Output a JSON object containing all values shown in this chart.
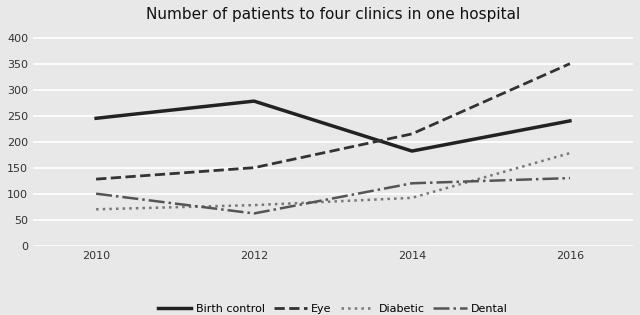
{
  "title": "Number of patients to four clinics in one hospital",
  "years": [
    2010,
    2012,
    2014,
    2016
  ],
  "series": {
    "Birth control": [
      245,
      278,
      182,
      240
    ],
    "Eye": [
      128,
      150,
      215,
      350
    ],
    "Diabetic": [
      70,
      78,
      92,
      178
    ],
    "Dental": [
      100,
      62,
      120,
      130
    ]
  },
  "styles": {
    "Birth control": {
      "color": "#222222",
      "linestyle": "-",
      "linewidth": 2.5
    },
    "Eye": {
      "color": "#333333",
      "linestyle": "--",
      "linewidth": 2.0
    },
    "Diabetic": {
      "color": "#777777",
      "linestyle": ":",
      "linewidth": 1.8
    },
    "Dental": {
      "color": "#555555",
      "linestyle": "-.",
      "linewidth": 1.8
    }
  },
  "ylim": [
    0,
    420
  ],
  "yticks": [
    0,
    50,
    100,
    150,
    200,
    250,
    300,
    350,
    400
  ],
  "xticks": [
    2010,
    2012,
    2014,
    2016
  ],
  "background_color": "#e8e8e8",
  "plot_bg_color": "#e8e8e8",
  "grid_color": "#ffffff",
  "grid_linewidth": 1.2,
  "title_fontsize": 11,
  "tick_fontsize": 8,
  "legend_fontsize": 8,
  "legend_ncol": 4
}
